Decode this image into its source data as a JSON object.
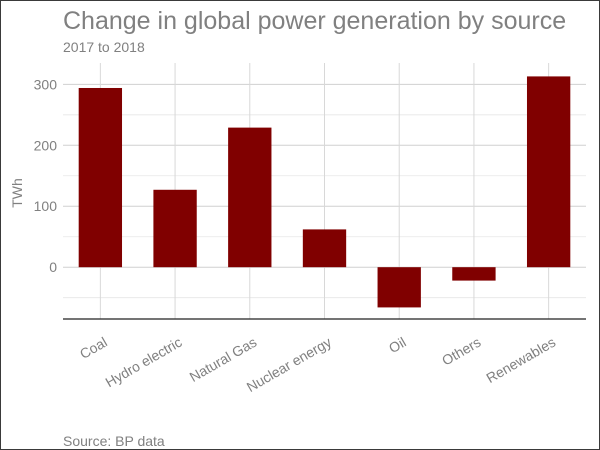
{
  "chart_data": {
    "type": "bar",
    "title": "Change in global power generation by source",
    "subtitle": "2017 to 2018",
    "caption": "Source: BP data",
    "xlabel": "",
    "ylabel": "TWh",
    "categories": [
      "Coal",
      "Hydro electric",
      "Natural Gas",
      "Nuclear energy",
      "Oil",
      "Others",
      "Renewables"
    ],
    "values": [
      294,
      127,
      229,
      62,
      -66,
      -22,
      313
    ],
    "ylim": [
      -85,
      335
    ],
    "yticks": [
      0,
      100,
      200,
      300
    ],
    "grid": true,
    "bar_color": "#800000",
    "legend": "none"
  }
}
